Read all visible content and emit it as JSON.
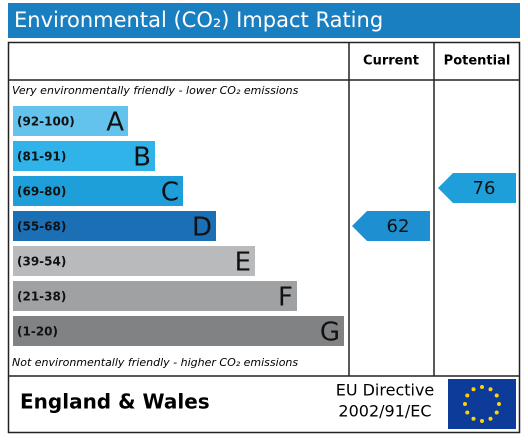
{
  "chart_data": {
    "type": "epc",
    "title": "Environmental (CO₂) Impact Rating",
    "column_headers": [
      "Current",
      "Potential"
    ],
    "top_note": "Very environmentally friendly - lower CO₂ emissions",
    "bottom_note": "Not environmentally friendly - higher CO₂ emissions",
    "bands": [
      {
        "label": "(92-100)",
        "min": 92,
        "max": 100,
        "letter": "A",
        "color": "#63c3ec"
      },
      {
        "label": "(81-91)",
        "min": 81,
        "max": 91,
        "letter": "B",
        "color": "#2fb3e8"
      },
      {
        "label": "(69-80)",
        "min": 69,
        "max": 80,
        "letter": "C",
        "color": "#1e9fd9"
      },
      {
        "label": "(55-68)",
        "min": 55,
        "max": 68,
        "letter": "D",
        "color": "#1a6fb5"
      },
      {
        "label": "(39-54)",
        "min": 39,
        "max": 54,
        "letter": "E",
        "color": "#b8babc"
      },
      {
        "label": "(21-38)",
        "min": 21,
        "max": 38,
        "letter": "F",
        "color": "#a0a1a3"
      },
      {
        "label": "(1-20)",
        "min": 1,
        "max": 20,
        "letter": "G",
        "color": "#818284"
      }
    ],
    "current": {
      "value": 62,
      "color": "#1e8fd0"
    },
    "potential": {
      "value": 76,
      "color": "#1e9fd9"
    },
    "footer": {
      "region": "England & Wales",
      "directive_line1": "EU Directive",
      "directive_line2": "2002/91/EC"
    }
  }
}
